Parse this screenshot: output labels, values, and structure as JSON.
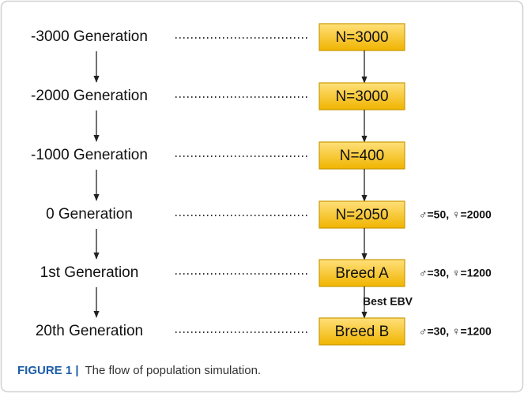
{
  "stages": [
    {
      "generation": "-3000 Generation",
      "population": "N=3000"
    },
    {
      "generation": "-2000 Generation",
      "population": "N=3000"
    },
    {
      "generation": "-1000 Generation",
      "population": "N=400"
    },
    {
      "generation": "0 Generation",
      "population": "N=2050",
      "note": "♂=50, ♀=2000"
    },
    {
      "generation": "1st Generation",
      "population": "Breed A",
      "note": "♂=30, ♀=1200"
    },
    {
      "generation": "20th Generation",
      "population": "Breed B",
      "note": "♂=30, ♀=1200"
    }
  ],
  "arrow_label": "Best EBV",
  "caption": {
    "label": "FIGURE 1 |",
    "text": "The flow of population simulation."
  }
}
